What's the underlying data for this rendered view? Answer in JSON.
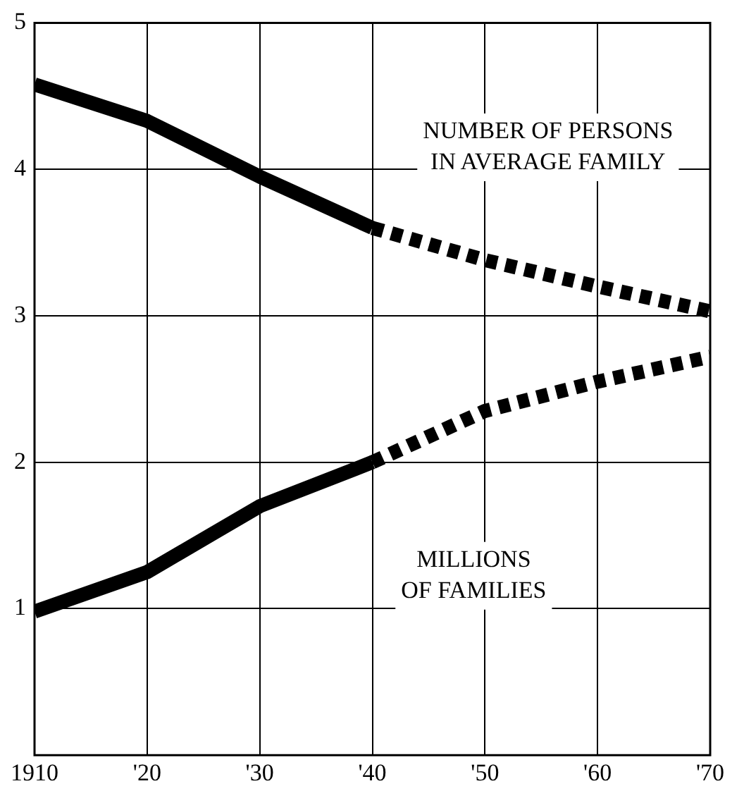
{
  "chart_data": {
    "type": "line",
    "x": [
      1910,
      1920,
      1930,
      1940,
      1950,
      1960,
      1970
    ],
    "series": [
      {
        "color": "#000000",
        "line_style": "solid",
        "values": [
          4.58,
          4.33,
          3.95,
          3.6,
          null,
          null,
          null
        ]
      },
      {
        "color": "#000000",
        "line_style": "dotted",
        "values": [
          null,
          null,
          null,
          3.6,
          3.38,
          3.2,
          3.03
        ]
      },
      {
        "color": "#000000",
        "line_style": "solid",
        "values": [
          0.98,
          1.25,
          1.7,
          2.0,
          null,
          null,
          null
        ]
      },
      {
        "color": "#000000",
        "line_style": "dotted",
        "values": [
          null,
          null,
          null,
          2.0,
          2.35,
          2.55,
          2.72
        ]
      }
    ],
    "xlim": [
      1910,
      1970
    ],
    "xticks": [
      1910,
      {
        "value": 1920,
        "label": "'20"
      },
      {
        "value": 1930,
        "label": "'30"
      },
      {
        "value": 1940,
        "label": "'40"
      },
      {
        "value": 1950,
        "label": "'50"
      },
      {
        "value": 1960,
        "label": "'60"
      },
      {
        "value": 1970,
        "label": "'70"
      }
    ],
    "ylim": [
      0,
      5
    ],
    "yticks": [
      {
        "value": 0,
        "label": null
      },
      1,
      2,
      3,
      4,
      5
    ],
    "grid": true,
    "legend": false,
    "marker": "none",
    "annotations": [
      "NUMBER OF PERSONS\nIN AVERAGE FAMILY",
      "MILLIONS\nOF FAMILIES"
    ]
  }
}
